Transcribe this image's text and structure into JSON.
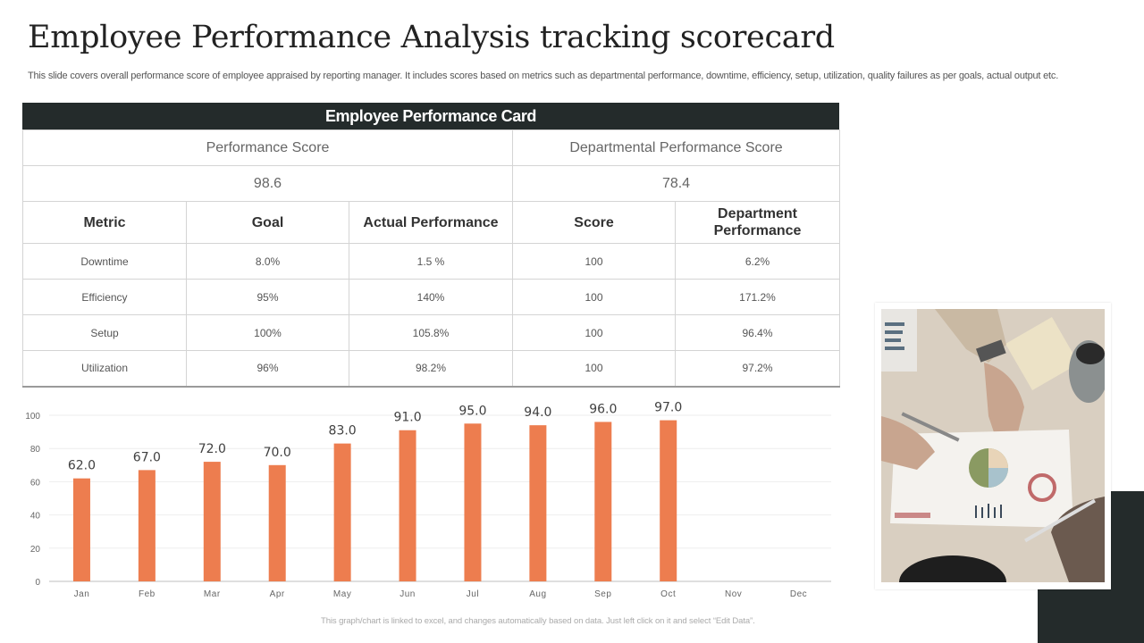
{
  "page": {
    "title": "Employee Performance Analysis tracking scorecard",
    "subtitle": "This slide covers overall performance score of employee appraised by reporting manager. It includes scores based on metrics such as  departmental performance, downtime, efficiency, setup, utilization, quality failures as per goals, actual output etc.",
    "footnote": "This graph/chart is linked to excel, and changes automatically based on data. Just left click on it and select “Edit Data”."
  },
  "card": {
    "header": "Employee Performance Card",
    "performance_score_label": "Performance Score",
    "performance_score_value": "98.6",
    "departmental_score_label": "Departmental Performance Score",
    "departmental_score_value": "78.4",
    "columns": [
      "Metric",
      "Goal",
      "Actual Performance",
      "Score",
      "Department Performance"
    ],
    "rows": [
      {
        "metric": "Downtime",
        "goal": "8.0%",
        "actual": "1.5 %",
        "score": "100",
        "dept": "6.2%"
      },
      {
        "metric": "Efficiency",
        "goal": "95%",
        "actual": "140%",
        "score": "100",
        "dept": "171.2%"
      },
      {
        "metric": "Setup",
        "goal": "100%",
        "actual": "105.8%",
        "score": "100",
        "dept": "96.4%"
      },
      {
        "metric": "Utilization",
        "goal": "96%",
        "actual": "98.2%",
        "score": "100",
        "dept": "97.2%"
      }
    ]
  },
  "colors": {
    "bar": "#ed7d4f",
    "header_bg": "#242b2b",
    "grid": "#eeeeee",
    "axis": "#bfbfbf"
  },
  "photo": {
    "description": "Business meeting hands analyzing charts on paper"
  },
  "chart_data": {
    "type": "bar",
    "title": "",
    "xlabel": "",
    "ylabel": "",
    "categories": [
      "Jan",
      "Feb",
      "Mar",
      "Apr",
      "May",
      "Jun",
      "Jul",
      "Aug",
      "Sep",
      "Oct",
      "Nov",
      "Dec"
    ],
    "values": [
      62.0,
      67.0,
      72.0,
      70.0,
      83.0,
      91.0,
      95.0,
      94.0,
      96.0,
      97.0,
      null,
      null
    ],
    "data_labels": [
      "62.0",
      "67.0",
      "72.0",
      "70.0",
      "83.0",
      "91.0",
      "95.0",
      "94.0",
      "96.0",
      "97.0",
      "",
      ""
    ],
    "ylim": [
      0,
      100
    ],
    "yticks": [
      0,
      20,
      40,
      60,
      80,
      100
    ],
    "grid": true,
    "legend": null
  }
}
